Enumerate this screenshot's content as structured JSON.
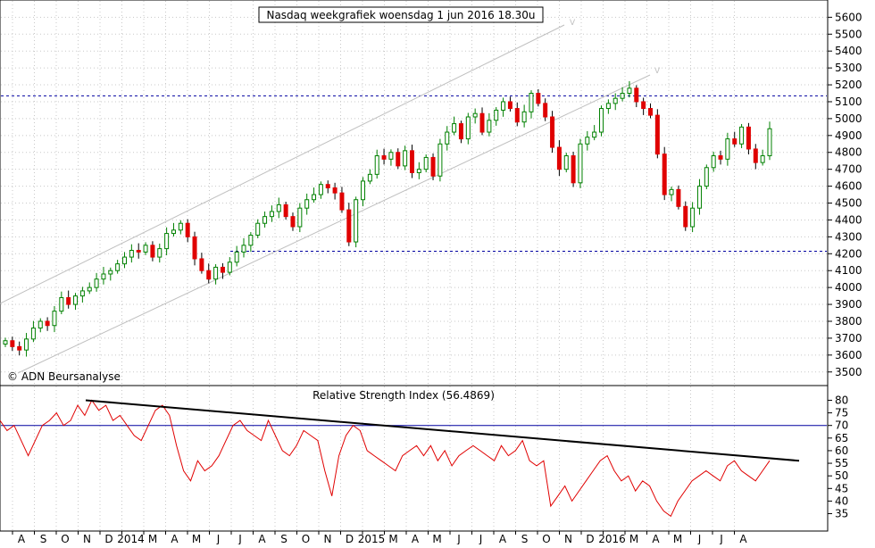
{
  "chart_data": [
    {
      "type": "candlestick",
      "title": "Nasdaq weekgrafiek woensdag 1 jun 2016 18.30u",
      "watermark": "© ADN Beursanalyse",
      "y_ticks": [
        3500,
        3600,
        3700,
        3800,
        3900,
        4000,
        4100,
        4200,
        4300,
        4400,
        4500,
        4600,
        4700,
        4800,
        4900,
        5000,
        5100,
        5200,
        5300,
        5400,
        5500,
        5600
      ],
      "ylim": [
        3430,
        5660
      ],
      "horizontal_lines": [
        5135,
        4215
      ],
      "channel_label": "V",
      "closes": [
        3685,
        3650,
        3630,
        3695,
        3760,
        3800,
        3775,
        3860,
        3940,
        3900,
        3950,
        3980,
        4000,
        4050,
        4080,
        4100,
        4140,
        4180,
        4220,
        4210,
        4250,
        4180,
        4230,
        4320,
        4340,
        4380,
        4300,
        4170,
        4100,
        4050,
        4120,
        4090,
        4150,
        4210,
        4250,
        4310,
        4380,
        4420,
        4450,
        4490,
        4420,
        4360,
        4470,
        4520,
        4550,
        4610,
        4590,
        4560,
        4460,
        4270,
        4520,
        4630,
        4670,
        4780,
        4760,
        4800,
        4720,
        4810,
        4680,
        4700,
        4770,
        4660,
        4850,
        4920,
        4970,
        4880,
        5010,
        5030,
        4920,
        4990,
        5050,
        5100,
        5060,
        4980,
        5040,
        5150,
        5090,
        5010,
        4830,
        4700,
        4780,
        4620,
        4850,
        4890,
        4920,
        5060,
        5090,
        5120,
        5150,
        5180,
        5100,
        5060,
        5020,
        4790,
        4550,
        4580,
        4480,
        4360,
        4470,
        4600,
        4710,
        4780,
        4760,
        4880,
        4850,
        4950,
        4820,
        4740,
        4780,
        4940
      ],
      "up_color": "#008000",
      "down_color": "#e00000"
    },
    {
      "type": "line",
      "title": "Relative Strength Index (56.4869)",
      "y_ticks": [
        35,
        40,
        45,
        50,
        55,
        60,
        65,
        70,
        75,
        80
      ],
      "ylim": [
        32,
        83
      ],
      "horizontal_lines": [
        70
      ],
      "trendline_start": 80,
      "trendline_end": 56,
      "line_color": "#e00000",
      "values": [
        72,
        68,
        70,
        64,
        58,
        64,
        70,
        72,
        75,
        70,
        72,
        78,
        74,
        80,
        76,
        78,
        72,
        74,
        70,
        66,
        64,
        70,
        76,
        78,
        74,
        62,
        52,
        48,
        56,
        52,
        54,
        58,
        64,
        70,
        72,
        68,
        66,
        64,
        72,
        66,
        60,
        58,
        62,
        68,
        66,
        64,
        52,
        42,
        58,
        66,
        70,
        68,
        60,
        58,
        56,
        54,
        52,
        58,
        60,
        62,
        58,
        62,
        56,
        60,
        54,
        58,
        60,
        62,
        60,
        58,
        56,
        62,
        58,
        60,
        64,
        56,
        54,
        56,
        38,
        42,
        46,
        40,
        44,
        48,
        52,
        56,
        58,
        52,
        48,
        50,
        44,
        48,
        46,
        40,
        36,
        34,
        40,
        44,
        48,
        50,
        52,
        50,
        48,
        54,
        56,
        52,
        50,
        48,
        52,
        56
      ]
    }
  ],
  "x_axis": {
    "labels": [
      "A",
      "S",
      "O",
      "N",
      "D",
      "2014",
      "M",
      "A",
      "M",
      "J",
      "J",
      "A",
      "S",
      "O",
      "N",
      "D",
      "2015",
      "M",
      "A",
      "M",
      "J",
      "J",
      "A",
      "S",
      "O",
      "N",
      "D",
      "2016",
      "M",
      "A",
      "M",
      "J",
      "J",
      "A"
    ]
  }
}
